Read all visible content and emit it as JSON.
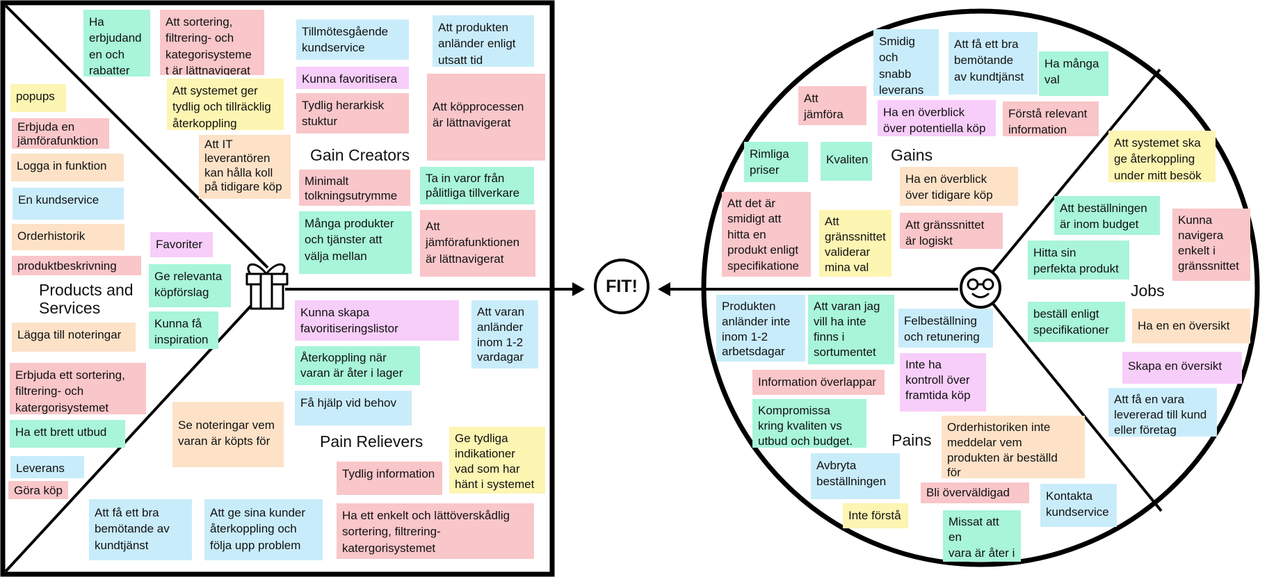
{
  "colors": {
    "pink": "#f9c6c9",
    "blue": "#c9ecfb",
    "green": "#a8f5d9",
    "yellow": "#fdf5b2",
    "peach": "#fde2c8",
    "purple": "#f7cdf9",
    "outline": "#000000"
  },
  "icons": {
    "gift": "gift-icon",
    "customer": "smiley-with-glasses-icon"
  },
  "fit_label": "FIT!",
  "value_map": {
    "sections": {
      "products_and_services": "Products and\nServices",
      "gain_creators": "Gain Creators",
      "pain_relievers": "Pain Relievers"
    },
    "notes": [
      {
        "text": "Ha\nerbjudand\nen och\nrabatter",
        "color": "green"
      },
      {
        "text": "Att sortering,\nfiltrering- och\nkategorisysteme\nt är lättnavigerat",
        "color": "pink"
      },
      {
        "text": "Tillmötesgående\nkundservice",
        "color": "blue"
      },
      {
        "text": "Att produkten\nanländer enligt\nutsatt tid",
        "color": "blue"
      },
      {
        "text": "popups",
        "color": "yellow"
      },
      {
        "text": "Att systemet ger\ntydlig och tillräcklig\nåterkoppling",
        "color": "yellow"
      },
      {
        "text": "Kunna favoritisera",
        "color": "purple"
      },
      {
        "text": "Att köpprocessen\när lättnavigerat",
        "color": "pink"
      },
      {
        "text": "Erbjuda en\njämförafunktion",
        "color": "pink"
      },
      {
        "text": "Tydlig herarkisk\nstuktur",
        "color": "pink"
      },
      {
        "text": "Att IT\nleverantören\nkan hålla koll\npå tidigare köp",
        "color": "peach"
      },
      {
        "text": "Logga in funktion",
        "color": "peach"
      },
      {
        "text": "Minimalt\ntolkningsutrymme",
        "color": "pink"
      },
      {
        "text": "Ta in varor från\npålitliga tillverkare",
        "color": "green"
      },
      {
        "text": "En kundservice",
        "color": "blue"
      },
      {
        "text": "Många produkter\noch tjänster att\nvälja mellan",
        "color": "green"
      },
      {
        "text": "Att\njämförafunktionen\när lättnavigerat",
        "color": "pink"
      },
      {
        "text": "Orderhistorik",
        "color": "peach"
      },
      {
        "text": "Favoriter",
        "color": "purple"
      },
      {
        "text": "produktbeskrivning",
        "color": "pink"
      },
      {
        "text": "Ge relevanta\nköpförslag",
        "color": "green"
      },
      {
        "text": "Kunna skapa\nfavoritiseringslistor",
        "color": "purple"
      },
      {
        "text": "Att varan\nanländer\ninom 1-2\nvardagar",
        "color": "blue"
      },
      {
        "text": "Kunna få\ninspiration",
        "color": "green"
      },
      {
        "text": "Lägga till noteringar",
        "color": "peach"
      },
      {
        "text": "Återkoppling när\nvaran är åter i lager",
        "color": "green"
      },
      {
        "text": "Erbjuda ett sortering,\nfiltrering- och\nkatergorisystemet",
        "color": "pink"
      },
      {
        "text": "Få hjälp vid behov",
        "color": "blue"
      },
      {
        "text": "Se noteringar vem\nvaran är köpts för",
        "color": "peach"
      },
      {
        "text": "Ha ett brett utbud",
        "color": "green"
      },
      {
        "text": "Ge tydliga\nindikationer\nvad som har\nhänt i systemet",
        "color": "yellow"
      },
      {
        "text": "Leverans",
        "color": "blue"
      },
      {
        "text": "Tydlig information",
        "color": "pink"
      },
      {
        "text": "Göra köp",
        "color": "pink"
      },
      {
        "text": "Att få ett bra\nbemötande av\nkundtjänst",
        "color": "blue"
      },
      {
        "text": "Att ge sina kunder\nåterkoppling och\nfölja upp problem",
        "color": "blue"
      },
      {
        "text": "Ha ett enkelt och lättöverskådlig\nsortering, filtrering-\nkatergorisystemet",
        "color": "pink"
      }
    ]
  },
  "customer_profile": {
    "sections": {
      "gains": "Gains",
      "jobs": "Jobs",
      "pains": "Pains"
    },
    "notes": [
      {
        "text": "Smidig\noch snabb\nleverans",
        "color": "blue"
      },
      {
        "text": "Att få ett bra\nbemötande\nav kundtjänst",
        "color": "blue"
      },
      {
        "text": "Ha många\nval",
        "color": "green"
      },
      {
        "text": "Att jämföra\nvaror",
        "color": "pink"
      },
      {
        "text": "Ha en överblick\növer potentiella köp",
        "color": "purple"
      },
      {
        "text": "Förstå relevant\ninformation",
        "color": "pink"
      },
      {
        "text": "Att systemet ska\nge återkoppling\nunder mitt besök",
        "color": "yellow"
      },
      {
        "text": "Rimliga\npriser",
        "color": "green"
      },
      {
        "text": "Kvaliten",
        "color": "green"
      },
      {
        "text": "Ha en överblick\növer tidigare köp",
        "color": "peach"
      },
      {
        "text": "Att beställningen\när inom budget",
        "color": "green"
      },
      {
        "text": "Kunna\nnavigera\nenkelt i\ngränssnittet",
        "color": "pink"
      },
      {
        "text": "Att det är\nsmidigt att\nhitta en\nprodukt enligt\nspecifikatione",
        "color": "pink"
      },
      {
        "text": "Att\ngränssnittet\nvaliderar\nmina val",
        "color": "yellow"
      },
      {
        "text": "Att gränssnittet\när logiskt",
        "color": "pink"
      },
      {
        "text": "Hitta sin\nperfekta produkt",
        "color": "green"
      },
      {
        "text": "Produkten\nanländer inte\ninom 1-2\narbetsdagar",
        "color": "blue"
      },
      {
        "text": "Att varan jag\nvill ha inte\nfinns i\nsortumentet",
        "color": "green"
      },
      {
        "text": "beställ enligt\nspecifikationer",
        "color": "green"
      },
      {
        "text": "Ha en en översikt",
        "color": "peach"
      },
      {
        "text": "Felbeställning\noch retunering",
        "color": "blue"
      },
      {
        "text": "Inte ha\nkontroll över\nframtida köp",
        "color": "purple"
      },
      {
        "text": "Skapa en översikt",
        "color": "purple"
      },
      {
        "text": "Information överlappar",
        "color": "pink"
      },
      {
        "text": "Att få en vara\nlevererad till kund\neller företag",
        "color": "blue"
      },
      {
        "text": "Kompromissa\nkring kvaliten vs\nutbud och budget.",
        "color": "green"
      },
      {
        "text": "Orderhistoriken inte\nmeddelar vem\nprodukten är beställd\nför",
        "color": "peach"
      },
      {
        "text": "Avbryta\nbeställningen",
        "color": "blue"
      },
      {
        "text": "Bli överväldigad",
        "color": "pink"
      },
      {
        "text": "Kontakta\nkundservice",
        "color": "blue"
      },
      {
        "text": "Inte förstå",
        "color": "yellow"
      },
      {
        "text": "Missat att en\nvara är åter i\nlager",
        "color": "green"
      }
    ]
  }
}
